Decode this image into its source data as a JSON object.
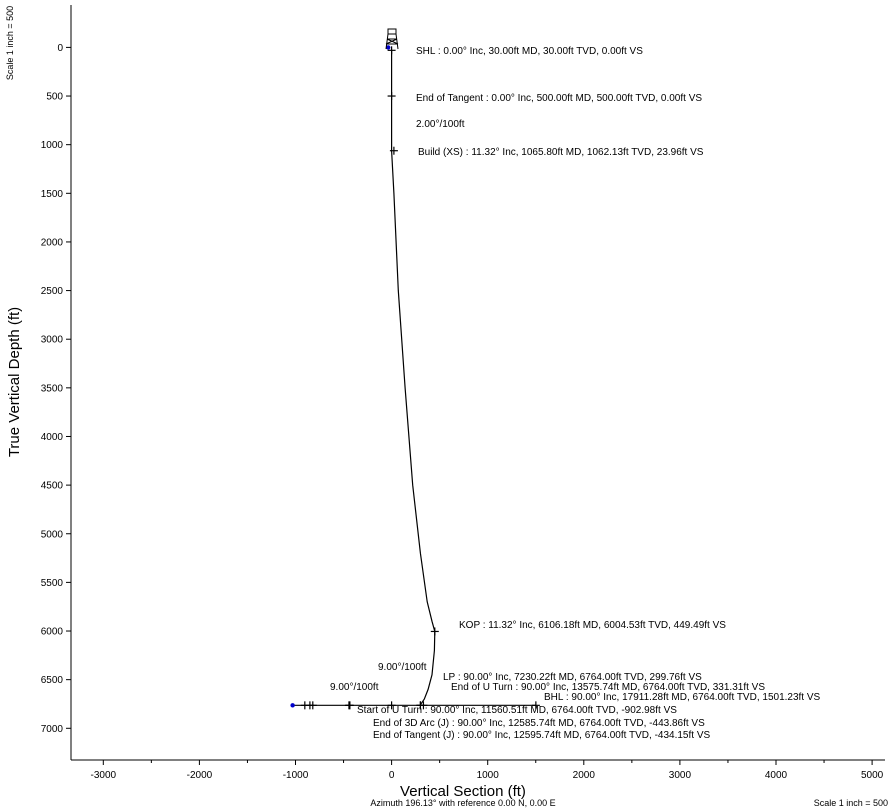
{
  "chart_data": {
    "type": "line",
    "xlabel": "Vertical Section (ft)",
    "ylabel": "True Vertical Depth (ft)",
    "xlim": [
      -3350,
      5000
    ],
    "ylim": [
      -400,
      7450
    ],
    "y_inverted": true,
    "grid": false,
    "x_ticks": [
      -3000,
      -2000,
      -1000,
      0,
      1000,
      2000,
      3000,
      4000,
      5000
    ],
    "y_ticks": [
      0,
      500,
      1000,
      1500,
      2000,
      2500,
      3000,
      3500,
      4000,
      4500,
      5000,
      5500,
      6000,
      6500,
      7000
    ],
    "scale_left": "Scale 1 inch = 500",
    "scale_bottom": "Scale 1 inch = 500",
    "azimuth_note": "Azimuth 196.13° with reference 0.00 N, 0.00 E",
    "colors": {
      "line": "#000000",
      "marker": "#0000cc"
    },
    "series": [
      {
        "values_x": [
          0,
          0,
          0,
          0,
          24,
          70,
          140,
          220,
          300,
          370,
          420,
          449.49,
          445,
          420,
          380,
          340,
          305,
          299.76,
          200,
          0,
          -434.15,
          -443.86,
          -902.98,
          -1000,
          -1050
        ],
        "values_y": [
          30,
          500,
          780,
          1062,
          1500,
          2500,
          3500,
          4500,
          5200,
          5700,
          5900,
          6004.53,
          6200,
          6450,
          6600,
          6700,
          6750,
          6764,
          6764,
          6764,
          6764,
          6764,
          6764,
          6764,
          6764
        ]
      },
      {
        "values_x": [
          299.76,
          331.31,
          1000,
          1501.23
        ],
        "values_y": [
          6764,
          6764,
          6764,
          6764
        ]
      }
    ],
    "points": [
      {
        "label": "SHL : 0.00° Inc, 30.00ft MD, 30.00ft TVD, 0.00ft VS",
        "x": 0,
        "y": 30
      },
      {
        "label": "End of Tangent : 0.00° Inc, 500.00ft MD, 500.00ft TVD, 0.00ft VS",
        "x": 0,
        "y": 500
      },
      {
        "label": "2.00°/100ft",
        "x": 0,
        "y": 780
      },
      {
        "label": "Build (XS) : 11.32° Inc, 1065.80ft MD, 1062.13ft TVD, 23.96ft VS",
        "x": 23.96,
        "y": 1062.13
      },
      {
        "label": "KOP : 11.32° Inc, 6106.18ft MD, 6004.53ft TVD, 449.49ft VS",
        "x": 449.49,
        "y": 6004.53
      },
      {
        "label": "9.00°/100ft",
        "x": 420,
        "y": 6540
      },
      {
        "label": "LP : 90.00° Inc, 7230.22ft MD, 6764.00ft TVD, 299.76ft VS",
        "x": 299.76,
        "y": 6764
      },
      {
        "label": "End of U Turn  : 90.00° Inc, 13575.74ft MD, 6764.00ft TVD, 331.31ft VS",
        "x": 331.31,
        "y": 6764
      },
      {
        "label": "BHL : 90.00° Inc, 17911.28ft MD, 6764.00ft TVD, 1501.23ft VS",
        "x": 1501.23,
        "y": 6764
      },
      {
        "label": "9.00°/100ft",
        "x": -430,
        "y": 6764
      },
      {
        "label": "Start of U Turn : 90.00° Inc, 11560.51ft MD, 6764.00ft TVD, -902.98ft VS",
        "x": -902.98,
        "y": 6764
      },
      {
        "label": "End of 3D Arc (J) : 90.00° Inc, 12585.74ft MD, 6764.00ft TVD, -443.86ft VS",
        "x": -443.86,
        "y": 6764
      },
      {
        "label": "End of Tangent (J) : 90.00° Inc, 12595.74ft MD, 6764.00ft TVD, -434.15ft VS",
        "x": -434.15,
        "y": 6764
      }
    ],
    "extra_ticks_x": [
      -850,
      -820,
      0,
      300
    ],
    "blue_markers": [
      {
        "x": -35,
        "y": 0
      },
      {
        "x": -1030,
        "y": 6764
      }
    ]
  }
}
